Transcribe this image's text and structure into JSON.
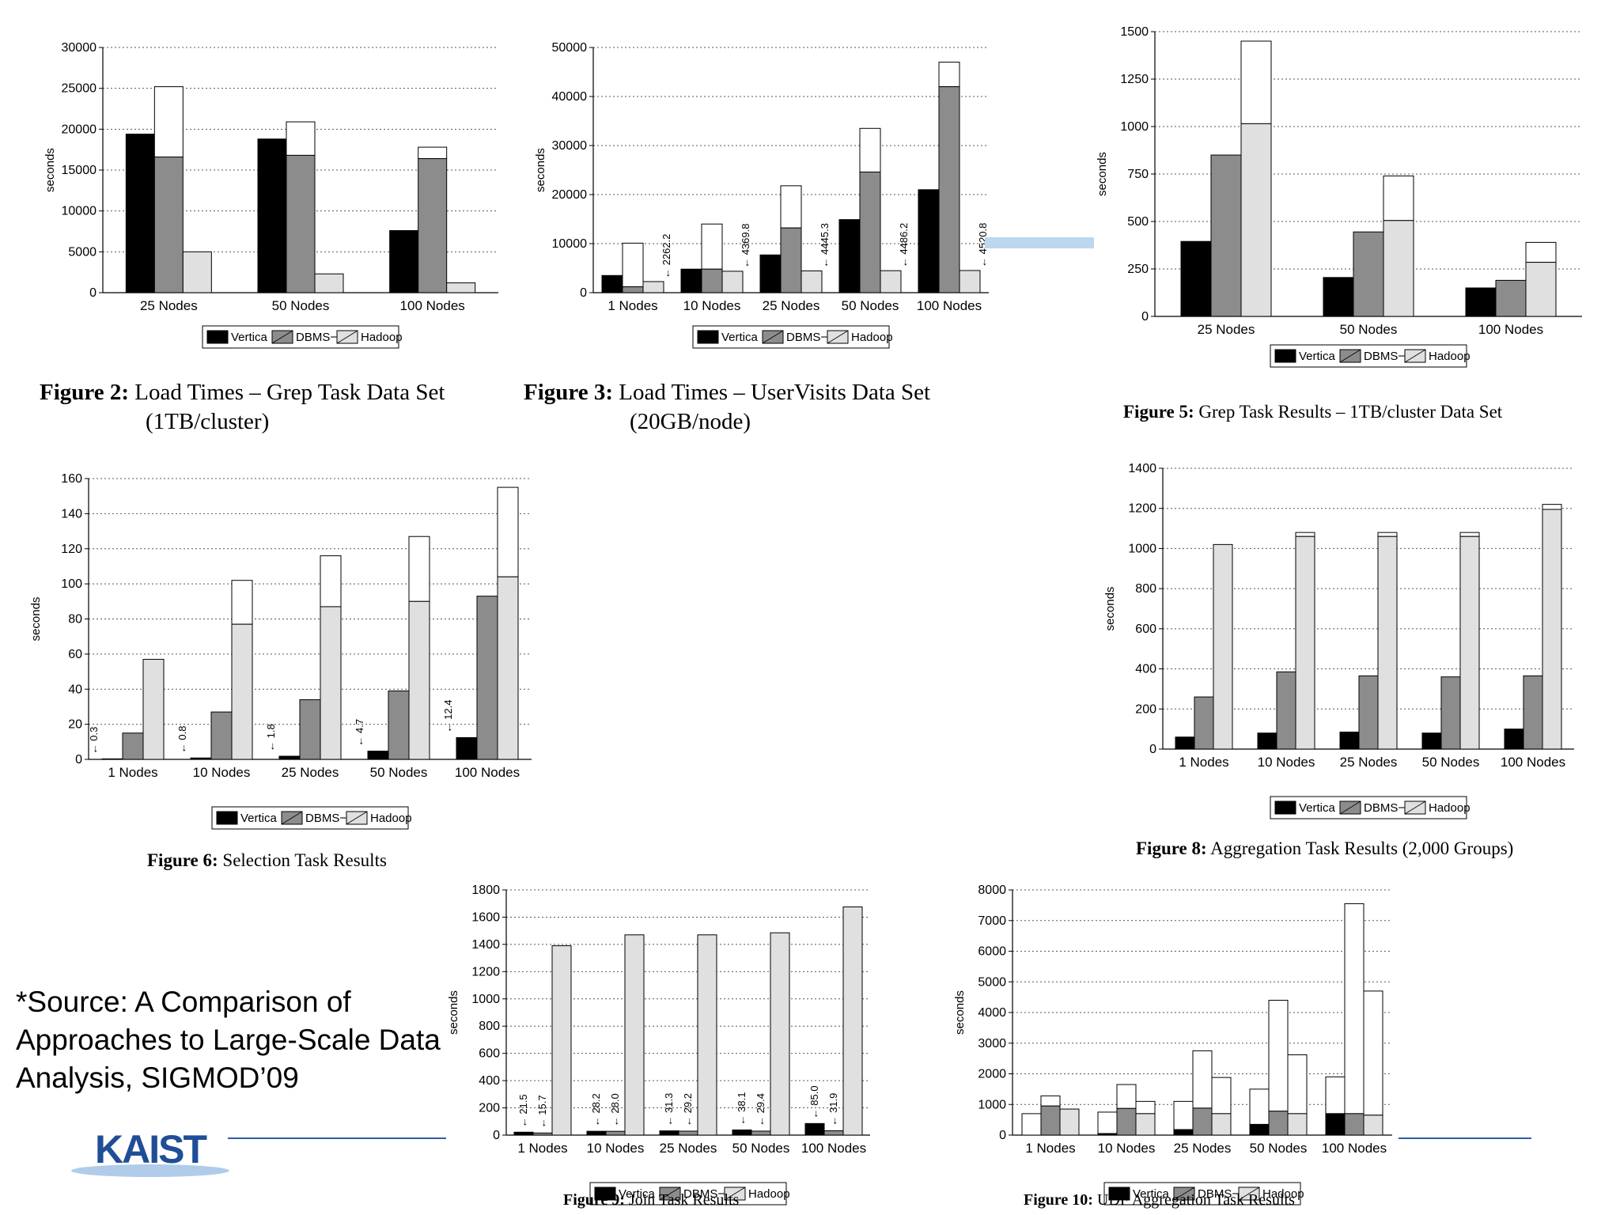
{
  "source_note": "*Source: A Comparison of Approaches to Large-Scale Data Analysis, SIGMOD’09",
  "logo_text": "KAIST",
  "colors": {
    "vertica": "#000000",
    "dbmsx": "#8c8c8c",
    "hadoop": "#e0e0e0",
    "deco": "#2f5fa8"
  },
  "legend_labels": [
    "Vertica",
    "DBMS−X",
    "Hadoop"
  ],
  "captions": {
    "fig2": {
      "num": "Figure 2:",
      "line1": "Load Times – Grep Task Data Set",
      "line2": "(1TB/cluster)"
    },
    "fig3": {
      "num": "Figure 3:",
      "line1": "Load Times – UserVisits Data Set",
      "line2": "(20GB/node)"
    },
    "fig5": {
      "num": "Figure 5:",
      "line1": "Grep Task Results – 1TB/cluster Data Set"
    },
    "fig6": {
      "num": "Figure 6:",
      "line1": "Selection Task Results"
    },
    "fig8": {
      "num": "Figure 8:",
      "line1": "Aggregation Task Results (2,000 Groups)"
    },
    "fig9": {
      "num": "Figure 9:",
      "line1": "Join Task Results"
    },
    "fig10": {
      "num": "Figure 10:",
      "line1": "UDF Aggregation Task Results"
    }
  },
  "chart_data": [
    {
      "id": "fig2",
      "type": "bar",
      "ylabel": "seconds",
      "ylim": [
        0,
        30000
      ],
      "yticks": [
        0,
        5000,
        10000,
        15000,
        20000,
        25000,
        30000
      ],
      "categories": [
        "25 Nodes",
        "50 Nodes",
        "100 Nodes"
      ],
      "grid": true,
      "legend": "bottom",
      "series": [
        {
          "name": "Vertica",
          "values": [
            19400,
            18800,
            7600
          ]
        },
        {
          "name": "DBMS−X",
          "values": [
            25200,
            20900,
            17800
          ],
          "split": [
            16600,
            16800,
            16400
          ]
        },
        {
          "name": "Hadoop",
          "values": [
            5000,
            2300,
            1200
          ]
        }
      ]
    },
    {
      "id": "fig3",
      "type": "bar",
      "ylabel": "seconds",
      "ylim": [
        0,
        50000
      ],
      "yticks": [
        0,
        10000,
        20000,
        30000,
        40000,
        50000
      ],
      "categories": [
        "1 Nodes",
        "10 Nodes",
        "25 Nodes",
        "50 Nodes",
        "100 Nodes"
      ],
      "grid": true,
      "legend": "bottom",
      "series": [
        {
          "name": "Vertica",
          "values": [
            3500,
            4800,
            7700,
            14900,
            21000
          ]
        },
        {
          "name": "DBMS−X",
          "values": [
            10100,
            14000,
            21800,
            33500,
            47000
          ],
          "split": [
            1200,
            4800,
            13200,
            24600,
            42000
          ]
        },
        {
          "name": "Hadoop",
          "values": [
            2262.2,
            4369.8,
            4445.3,
            4486.2,
            4520.8
          ]
        }
      ],
      "annotations": [
        "2262.2",
        "4369.8",
        "4445.3",
        "4486.2",
        "4520.8"
      ]
    },
    {
      "id": "fig5",
      "type": "bar",
      "ylabel": "seconds",
      "ylim": [
        0,
        1500
      ],
      "yticks": [
        0,
        250,
        500,
        750,
        1000,
        1250,
        1500
      ],
      "categories": [
        "25 Nodes",
        "50 Nodes",
        "100 Nodes"
      ],
      "grid": true,
      "legend": "bottom",
      "series": [
        {
          "name": "Vertica",
          "values": [
            395,
            205,
            150
          ]
        },
        {
          "name": "DBMS−X",
          "values": [
            850,
            445,
            190
          ]
        },
        {
          "name": "Hadoop",
          "values": [
            1450,
            740,
            390
          ],
          "split": [
            1015,
            505,
            285
          ]
        }
      ]
    },
    {
      "id": "fig6",
      "type": "bar",
      "ylabel": "seconds",
      "ylim": [
        0,
        160
      ],
      "yticks": [
        0,
        20,
        40,
        60,
        80,
        100,
        120,
        140,
        160
      ],
      "categories": [
        "1 Nodes",
        "10 Nodes",
        "25 Nodes",
        "50 Nodes",
        "100 Nodes"
      ],
      "grid": true,
      "legend": "bottom",
      "series": [
        {
          "name": "Vertica",
          "values": [
            0.3,
            0.8,
            1.8,
            4.7,
            12.4
          ]
        },
        {
          "name": "DBMS−X",
          "values": [
            15,
            27,
            34,
            39,
            93
          ]
        },
        {
          "name": "Hadoop",
          "values": [
            57,
            102,
            116,
            127,
            155
          ],
          "split": [
            57,
            77,
            87,
            90,
            104
          ]
        }
      ],
      "annotations": [
        "0.3",
        "0.8",
        "1.8",
        "4.7",
        "12.4"
      ]
    },
    {
      "id": "fig8",
      "type": "bar",
      "ylabel": "seconds",
      "ylim": [
        0,
        1400
      ],
      "yticks": [
        0,
        200,
        400,
        600,
        800,
        1000,
        1200,
        1400
      ],
      "categories": [
        "1 Nodes",
        "10 Nodes",
        "25 Nodes",
        "50 Nodes",
        "100 Nodes"
      ],
      "grid": true,
      "legend": "bottom",
      "series": [
        {
          "name": "Vertica",
          "values": [
            60,
            80,
            85,
            80,
            100
          ]
        },
        {
          "name": "DBMS−X",
          "values": [
            260,
            385,
            365,
            360,
            365
          ]
        },
        {
          "name": "Hadoop",
          "values": [
            1020,
            1080,
            1080,
            1080,
            1220
          ],
          "split": [
            1020,
            1060,
            1060,
            1060,
            1195
          ]
        }
      ]
    },
    {
      "id": "fig9",
      "type": "bar",
      "ylabel": "seconds",
      "ylim": [
        0,
        1800
      ],
      "yticks": [
        0,
        200,
        400,
        600,
        800,
        1000,
        1200,
        1400,
        1600,
        1800
      ],
      "categories": [
        "1 Nodes",
        "10 Nodes",
        "25 Nodes",
        "50 Nodes",
        "100 Nodes"
      ],
      "grid": true,
      "legend": "bottom",
      "series": [
        {
          "name": "Vertica",
          "values": [
            21.5,
            28.2,
            31.3,
            38.1,
            85.0
          ]
        },
        {
          "name": "DBMS−X",
          "values": [
            15.7,
            28.0,
            29.2,
            29.4,
            31.9
          ]
        },
        {
          "name": "Hadoop",
          "values": [
            1390,
            1470,
            1470,
            1485,
            1675
          ]
        }
      ],
      "annotations": [
        [
          "21.5",
          "15.7"
        ],
        [
          "28.2",
          "28.0"
        ],
        [
          "31.3",
          "29.2"
        ],
        [
          "38.1",
          "29.4"
        ],
        [
          "85.0",
          "31.9"
        ]
      ]
    },
    {
      "id": "fig10",
      "type": "bar",
      "ylabel": "seconds",
      "ylim": [
        0,
        8000
      ],
      "yticks": [
        0,
        1000,
        2000,
        3000,
        4000,
        5000,
        6000,
        7000,
        8000
      ],
      "categories": [
        "1 Nodes",
        "10 Nodes",
        "25 Nodes",
        "50 Nodes",
        "100 Nodes"
      ],
      "grid": true,
      "legend": "bottom",
      "series": [
        {
          "name": "Vertica",
          "values": [
            700,
            750,
            1100,
            1500,
            1900
          ],
          "split": [
            0,
            50,
            180,
            350,
            700
          ]
        },
        {
          "name": "DBMS−X",
          "values": [
            1280,
            1650,
            2750,
            4400,
            7550
          ],
          "split": [
            950,
            870,
            880,
            780,
            700
          ]
        },
        {
          "name": "Hadoop",
          "values": [
            850,
            1100,
            1880,
            2620,
            4700
          ],
          "split": [
            850,
            700,
            700,
            700,
            650
          ]
        }
      ]
    }
  ]
}
